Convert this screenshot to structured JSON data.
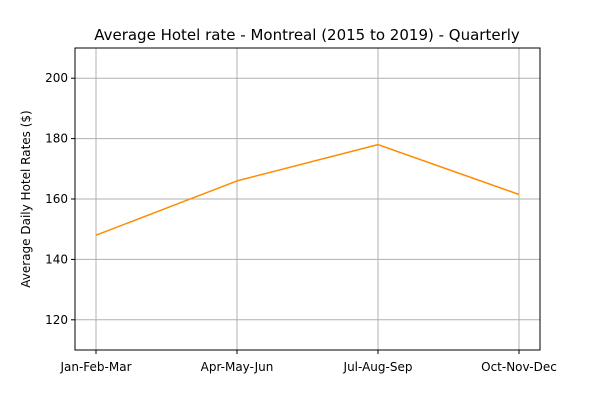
{
  "chart_data": {
    "type": "line",
    "title": "Average Hotel rate - Montreal (2015 to 2019) - Quarterly",
    "xlabel": "",
    "ylabel": "Average Daily Hotel Rates ($)",
    "categories": [
      "Jan-Feb-Mar",
      "Apr-May-Jun",
      "Jul-Aug-Sep",
      "Oct-Nov-Dec"
    ],
    "series": [
      {
        "values": [
          148,
          166,
          178,
          161.5
        ],
        "color": "#ff8c00"
      }
    ],
    "ylim": [
      110,
      210
    ],
    "yticks": [
      120,
      140,
      160,
      180,
      200
    ],
    "grid": true,
    "grid_color": "#b0b0b0"
  }
}
